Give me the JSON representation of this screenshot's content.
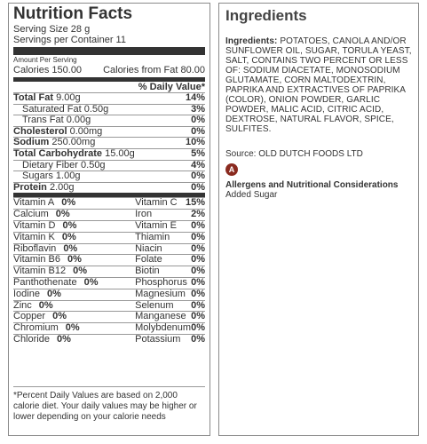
{
  "nutrition": {
    "title": "Nutrition Facts",
    "serving_size": "Serving Size 28 g",
    "servings_per_container": "Servings per Container  11",
    "amount_per_serving": "Amount Per Serving",
    "calories": "Calories 150.00",
    "calories_from_fat": "Calories from Fat 80.00",
    "dv_header": "% Daily Value*",
    "rows": [
      {
        "label": "Total Fat",
        "amount": " 9.00g",
        "pct": "14%",
        "bold": true,
        "indent": false
      },
      {
        "label": "Saturated Fat",
        "amount": " 0.50g",
        "pct": "3%",
        "bold": false,
        "indent": true
      },
      {
        "label": "Trans Fat",
        "amount": " 0.00g",
        "pct": "0%",
        "bold": false,
        "indent": true
      },
      {
        "label": "Cholesterol",
        "amount": " 0.00mg",
        "pct": "0%",
        "bold": true,
        "indent": false
      },
      {
        "label": "Sodium",
        "amount": " 250.00mg",
        "pct": "10%",
        "bold": true,
        "indent": false
      },
      {
        "label": "Total Carbohydrate",
        "amount": " 15.00g",
        "pct": "5%",
        "bold": true,
        "indent": false
      },
      {
        "label": "Dietary Fiber",
        "amount": " 0.50g",
        "pct": "4%",
        "bold": false,
        "indent": true
      },
      {
        "label": "Sugars",
        "amount": " 1.00g",
        "pct": "0%",
        "bold": false,
        "indent": true
      },
      {
        "label": "Protein",
        "amount": " 2.00g",
        "pct": "0%",
        "bold": true,
        "indent": false
      }
    ],
    "vitamins": [
      {
        "left_name": "Vitamin A",
        "left_pct": "0%",
        "right_name": "Vitamin C",
        "right_pct": "15%"
      },
      {
        "left_name": "Calcium",
        "left_pct": "0%",
        "right_name": "Iron",
        "right_pct": "2%"
      },
      {
        "left_name": "Vitamin D",
        "left_pct": "0%",
        "right_name": "Vitamin E",
        "right_pct": "0%"
      },
      {
        "left_name": "Vitamin K",
        "left_pct": "0%",
        "right_name": "Thiamin",
        "right_pct": "0%"
      },
      {
        "left_name": "Riboflavin",
        "left_pct": "0%",
        "right_name": "Niacin",
        "right_pct": "0%"
      },
      {
        "left_name": "Vitamin B6",
        "left_pct": "0%",
        "right_name": "Folate",
        "right_pct": "0%"
      },
      {
        "left_name": "Vitamin B12",
        "left_pct": "0%",
        "right_name": "Biotin",
        "right_pct": "0%"
      },
      {
        "left_name": "Panthothenate",
        "left_pct": "0%",
        "right_name": "Phosphorus",
        "right_pct": "0%"
      },
      {
        "left_name": "Iodine",
        "left_pct": "0%",
        "right_name": "Magnesium",
        "right_pct": "0%"
      },
      {
        "left_name": "Zinc",
        "left_pct": "0%",
        "right_name": "Selenum",
        "right_pct": "0%"
      },
      {
        "left_name": "Copper",
        "left_pct": "0%",
        "right_name": "Manganese",
        "right_pct": "0%"
      },
      {
        "left_name": "Chromium",
        "left_pct": "0%",
        "right_name": "Molybdenum",
        "right_pct": "0%"
      },
      {
        "left_name": "Chloride",
        "left_pct": "0%",
        "right_name": "Potassium",
        "right_pct": "0%"
      }
    ],
    "footnote": "*Percent Daily Values are based on 2,000 calorie diet. Your daily values may be higher or lower depending on your calorie needs"
  },
  "ingredients": {
    "title": "Ingredients",
    "label": "Ingredients:",
    "text": " POTATOES, CANOLA AND/OR SUNFLOWER OIL, SUGAR, TORULA YEAST, SALT, CONTAINS TWO PERCENT OR LESS OF: SODIUM DIACETATE, MONOSODIUM GLUTAMATE, CORN MALTODEXTRIN, PAPRIKA AND EXTRACTIVES OF PAPRIKA (COLOR), ONION POWDER, GARLIC POWDER, MALIC ACID, CITRIC ACID, DEXTROSE, NATURAL FLAVOR, SPICE, SULFITES.",
    "source": "Source: OLD DUTCH FOODS LTD",
    "allergen_icon_letter": "A",
    "allergen_icon_color": "#8a2a1f",
    "allergens_title": "Allergens and Nutritional Considerations",
    "allergens": [
      "Added Sugar"
    ]
  }
}
